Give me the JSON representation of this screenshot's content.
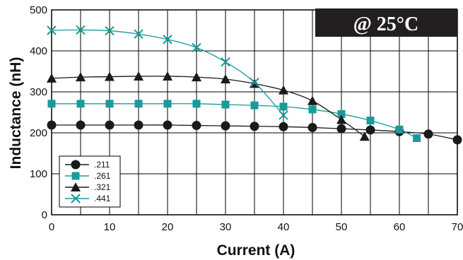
{
  "chart_data": {
    "type": "line",
    "xlabel": "Current (A)",
    "ylabel": "Inductance (nH)",
    "xlim": [
      0,
      70
    ],
    "ylim": [
      0,
      500
    ],
    "xticks": [
      0,
      10,
      20,
      30,
      40,
      50,
      60,
      70
    ],
    "yticks": [
      0,
      100,
      200,
      300,
      400,
      500
    ],
    "x_gridlines": [
      0,
      5,
      10,
      15,
      20,
      25,
      30,
      35,
      40,
      45,
      50,
      55,
      60,
      65,
      70
    ],
    "y_gridlines": [
      0,
      100,
      200,
      300,
      400,
      500
    ],
    "grid": true,
    "legend_position": "bottom-left",
    "annotation": "@ 25°C",
    "colors": {
      "dark": "#1a1a1a",
      "teal": "#1a9a9a",
      "grid": "#000000",
      "annotation_bg": "#231f20"
    },
    "series": [
      {
        "name": ".211",
        "marker": "circle",
        "color": "#1a1a1a",
        "points": [
          [
            0,
            219
          ],
          [
            5,
            219
          ],
          [
            10,
            219
          ],
          [
            15,
            219
          ],
          [
            20,
            219
          ],
          [
            25,
            218
          ],
          [
            30,
            217
          ],
          [
            35,
            216
          ],
          [
            40,
            215
          ],
          [
            45,
            213
          ],
          [
            50,
            210
          ],
          [
            55,
            207
          ],
          [
            60,
            203
          ],
          [
            65,
            197
          ],
          [
            70,
            183
          ]
        ]
      },
      {
        "name": ".261",
        "marker": "square",
        "color": "#1a9a9a",
        "points": [
          [
            0,
            271
          ],
          [
            5,
            271
          ],
          [
            10,
            271
          ],
          [
            15,
            271
          ],
          [
            20,
            271
          ],
          [
            25,
            271
          ],
          [
            30,
            269
          ],
          [
            35,
            267
          ],
          [
            40,
            264
          ],
          [
            45,
            257
          ],
          [
            50,
            246
          ],
          [
            55,
            230
          ],
          [
            60,
            208
          ],
          [
            63,
            187
          ]
        ]
      },
      {
        "name": ".321",
        "marker": "triangle",
        "color": "#1a1a1a",
        "points": [
          [
            0,
            333
          ],
          [
            5,
            336
          ],
          [
            10,
            337
          ],
          [
            15,
            338
          ],
          [
            20,
            338
          ],
          [
            25,
            336
          ],
          [
            30,
            331
          ],
          [
            35,
            320
          ],
          [
            40,
            304
          ],
          [
            45,
            278
          ],
          [
            50,
            232
          ],
          [
            54,
            191
          ]
        ]
      },
      {
        "name": ".441",
        "marker": "x",
        "color": "#1a9a9a",
        "points": [
          [
            0,
            450
          ],
          [
            5,
            451
          ],
          [
            10,
            449
          ],
          [
            15,
            441
          ],
          [
            20,
            428
          ],
          [
            25,
            408
          ],
          [
            30,
            373
          ],
          [
            35,
            323
          ],
          [
            40,
            243
          ]
        ]
      }
    ]
  }
}
